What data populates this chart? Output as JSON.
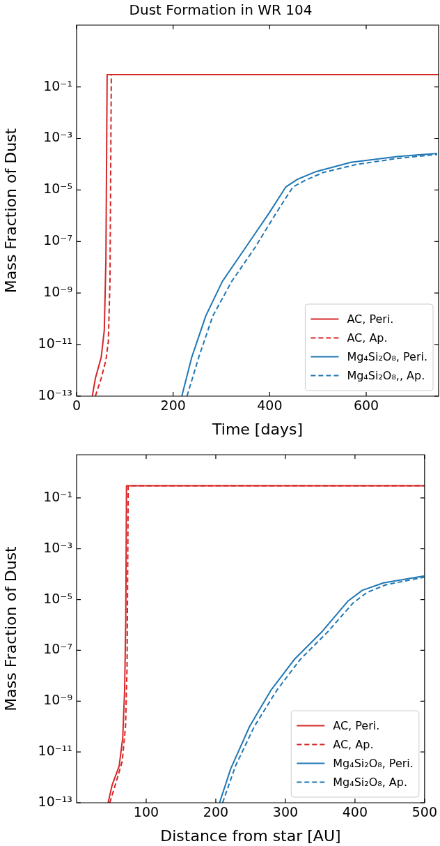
{
  "chart_data": [
    {
      "type": "line",
      "title": "Dust Formation in WR 104",
      "xlabel": "Time [days]",
      "ylabel": "Mass Fraction of Dust",
      "log": true,
      "grid": false,
      "legend": "bottom right",
      "marker": "none",
      "xlim": [
        0,
        750
      ],
      "xticks": [
        0,
        200,
        400,
        600
      ],
      "ylim": [
        1e-13,
        25
      ],
      "yticks": [
        {
          "value": 1e-13,
          "label": "10⁻¹³"
        },
        {
          "value": 1e-11,
          "label": "10⁻¹¹"
        },
        {
          "value": 1e-09,
          "label": "10⁻⁹"
        },
        {
          "value": 1e-07,
          "label": "10⁻⁷"
        },
        {
          "value": 1e-05,
          "label": "10⁻⁵"
        },
        {
          "value": 0.001,
          "label": "10⁻³"
        },
        {
          "value": 0.1,
          "label": "10⁻¹"
        }
      ],
      "series": [
        {
          "name": "AC, Peri.",
          "color": "#d62728",
          "line_style": "solid",
          "x": [
            32.6,
            38.9,
            51,
            57.4,
            60.8,
            63.3,
            750
          ],
          "values": [
            1e-13,
            4.9e-13,
            3.2e-12,
            3.6e-11,
            2.1e-08,
            0.3,
            0.3
          ]
        },
        {
          "name": "AC, Ap.",
          "color": "#d62728",
          "line_style": "dashed",
          "x": [
            38.9,
            51,
            60.8,
            65.7,
            69.2,
            72,
            750
          ],
          "values": [
            1e-13,
            4.9e-13,
            2.5e-12,
            1.3e-11,
            2.8e-09,
            0.3,
            0.3
          ]
        },
        {
          "name": "Mg₄Si₂O₈, Peri.",
          "color": "#1f77b4",
          "line_style": "solid",
          "x": [
            218,
            238.5,
            267.7,
            301.9,
            350.5,
            399.2,
            433.3,
            457.5,
            496.6,
            569.6,
            667,
            747
          ],
          "values": [
            1e-13,
            3.2e-12,
            1.3e-10,
            2.8e-09,
            6e-08,
            1.3e-06,
            1.3e-05,
            2.6e-05,
            5.2e-05,
            0.00012,
            0.0002,
            0.00026
          ]
        },
        {
          "name": "Mg₄Si₂O₈,, Ap.",
          "color": "#1f77b4",
          "line_style": "dashed",
          "x": [
            228.8,
            253,
            282.3,
            321.2,
            370,
            413.8,
            448,
            472.2,
            511.2,
            580,
            667,
            747
          ],
          "values": [
            1e-13,
            3.2e-12,
            1.3e-10,
            2.8e-09,
            6e-08,
            1.3e-06,
            1.3e-05,
            2.3e-05,
            4.8e-05,
            9.8e-05,
            0.00017,
            0.00024
          ]
        }
      ]
    },
    {
      "type": "line",
      "xlabel": "Distance from star [AU]",
      "ylabel": "Mass Fraction of Dust",
      "log": true,
      "grid": false,
      "legend": "bottom right",
      "marker": "none",
      "xlim": [
        0,
        500
      ],
      "xticks": [
        100,
        200,
        300,
        400,
        500
      ],
      "ylim": [
        1e-13,
        5
      ],
      "yticks": [
        {
          "value": 1e-13,
          "label": "10⁻¹³"
        },
        {
          "value": 1e-11,
          "label": "10⁻¹¹"
        },
        {
          "value": 1e-09,
          "label": "10⁻⁹"
        },
        {
          "value": 1e-07,
          "label": "10⁻⁷"
        },
        {
          "value": 1e-05,
          "label": "10⁻⁵"
        },
        {
          "value": 0.001,
          "label": "10⁻³"
        },
        {
          "value": 0.1,
          "label": "10⁻¹"
        }
      ],
      "series": [
        {
          "name": "AC, Peri.",
          "color": "#d62728",
          "line_style": "solid",
          "x": [
            45.3,
            51.1,
            61.2,
            66.3,
            69,
            70.7,
            71.7,
            500
          ],
          "values": [
            1e-13,
            5e-13,
            2.8e-12,
            3.6e-11,
            2.6e-09,
            1.6e-06,
            0.3,
            0.3
          ]
        },
        {
          "name": "AC, Ap.",
          "color": "#d62728",
          "line_style": "dashed",
          "x": [
            47.7,
            57.8,
            65.6,
            70.4,
            72.5,
            74.2,
            500
          ],
          "values": [
            1e-13,
            7.9e-13,
            4.3e-12,
            1.1e-10,
            2.2e-08,
            0.3,
            0.3
          ]
        },
        {
          "name": "Mg₄Si₂O₈, Peri.",
          "color": "#1f77b4",
          "line_style": "solid",
          "x": [
            205.4,
            221.5,
            248.5,
            278.9,
            312.6,
            353.1,
            390.3,
            410.5,
            440.9,
            499.9
          ],
          "values": [
            1e-13,
            2.2e-12,
            1e-10,
            2.6e-09,
            4.3e-08,
            5.6e-07,
            8.9e-06,
            2.3e-05,
            4.5e-05,
            8.5e-05
          ]
        },
        {
          "name": "Mg₄Si₂O₈, Ap.",
          "color": "#1f77b4",
          "line_style": "dashed",
          "x": [
            209.8,
            228.3,
            255.3,
            287.4,
            321.1,
            361.5,
            397,
            417.3,
            444.3,
            499.9
          ],
          "values": [
            1e-13,
            2.8e-12,
            1e-10,
            2.6e-09,
            4.3e-08,
            5.6e-07,
            7.2e-06,
            1.9e-05,
            3.8e-05,
            7.6e-05
          ]
        }
      ]
    }
  ]
}
